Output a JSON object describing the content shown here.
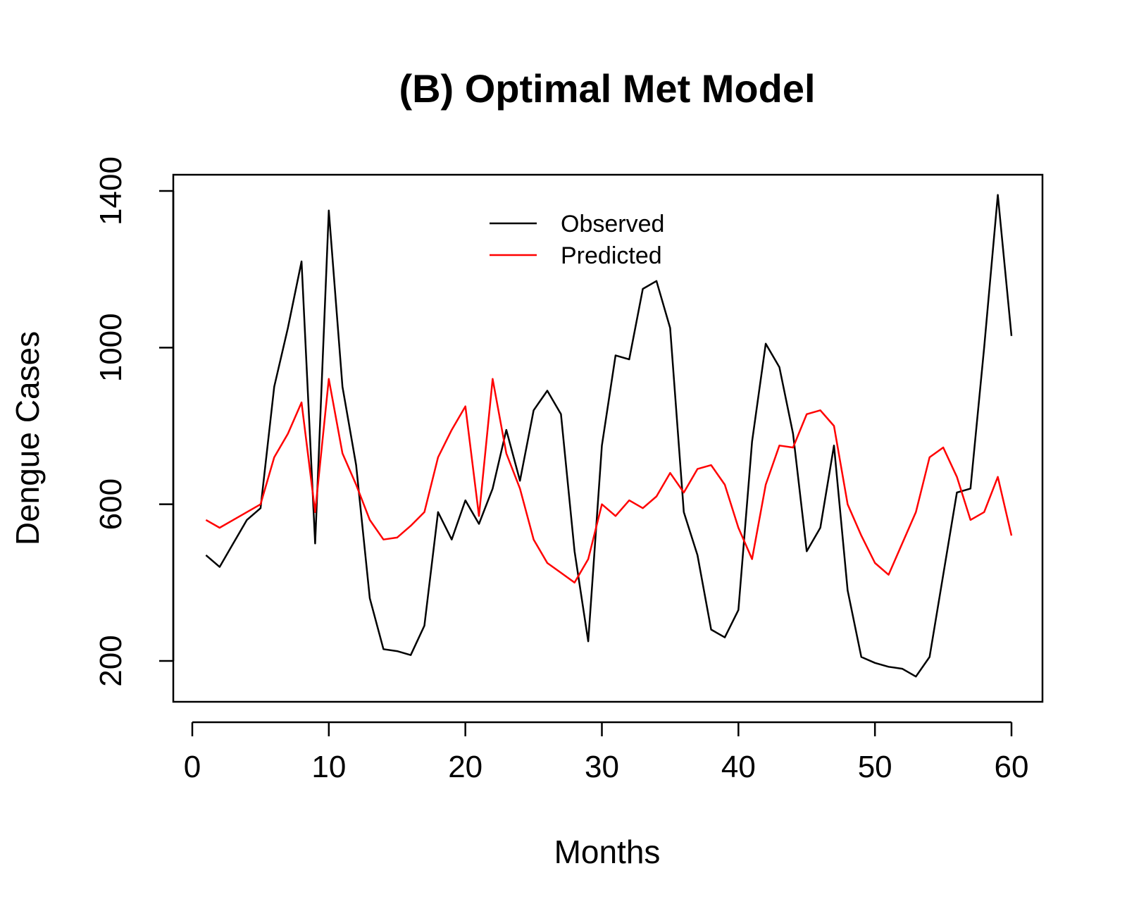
{
  "chart_data": {
    "type": "line",
    "title": "(B) Optimal Met Model",
    "xlabel": "Months",
    "ylabel": "Dengue Cases",
    "xlim": [
      0,
      60
    ],
    "ylim": [
      200,
      1400
    ],
    "xticks": [
      0,
      10,
      20,
      30,
      40,
      50,
      60
    ],
    "yticks": [
      200,
      600,
      1000,
      1400
    ],
    "grid": false,
    "legend_position": "top-center",
    "x": [
      1,
      2,
      3,
      4,
      5,
      6,
      7,
      8,
      9,
      10,
      11,
      12,
      13,
      14,
      15,
      16,
      17,
      18,
      19,
      20,
      21,
      22,
      23,
      24,
      25,
      26,
      27,
      28,
      29,
      30,
      31,
      32,
      33,
      34,
      35,
      36,
      37,
      38,
      39,
      40,
      41,
      42,
      43,
      44,
      45,
      46,
      47,
      48,
      49,
      50,
      51,
      52,
      53,
      54,
      55,
      56,
      57,
      58,
      59,
      60
    ],
    "series": [
      {
        "name": "Observed",
        "color": "#000000",
        "values": [
          470,
          440,
          500,
          560,
          590,
          900,
          1050,
          1220,
          500,
          1350,
          900,
          700,
          360,
          230,
          225,
          215,
          290,
          580,
          510,
          610,
          550,
          640,
          790,
          660,
          840,
          890,
          830,
          480,
          250,
          750,
          980,
          970,
          1150,
          1170,
          1050,
          580,
          470,
          280,
          260,
          330,
          760,
          1010,
          950,
          780,
          480,
          540,
          750,
          380,
          210,
          195,
          185,
          180,
          160,
          210,
          420,
          630,
          640,
          1000,
          1390,
          1030
        ]
      },
      {
        "name": "Predicted",
        "color": "#ff0000",
        "values": [
          560,
          540,
          560,
          580,
          600,
          720,
          780,
          860,
          580,
          920,
          730,
          650,
          560,
          510,
          515,
          545,
          580,
          720,
          790,
          850,
          570,
          920,
          730,
          640,
          510,
          450,
          425,
          400,
          460,
          600,
          570,
          610,
          590,
          620,
          680,
          630,
          690,
          700,
          650,
          540,
          460,
          650,
          750,
          745,
          830,
          840,
          800,
          600,
          520,
          450,
          420,
          500,
          580,
          720,
          745,
          670,
          560,
          580,
          670,
          520
        ]
      }
    ]
  }
}
